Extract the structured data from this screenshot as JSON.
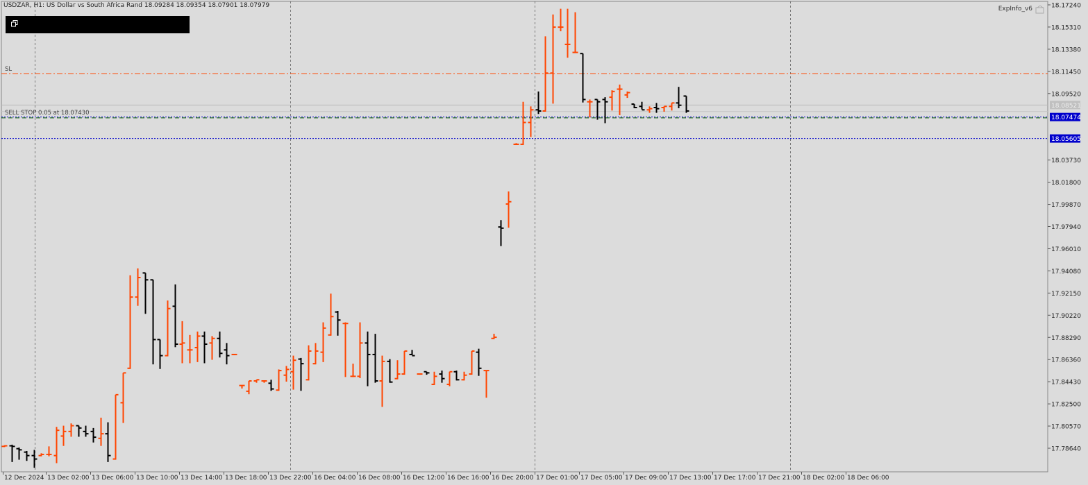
{
  "header": {
    "symbol_line": "USDZAR, H1:  US Dollar vs South Africa Rand  18.09284 18.09354 18.07901 18.07979",
    "indicator_name": "ExpInfo_v6"
  },
  "lines": {
    "sl": {
      "label": "SL",
      "price": 18.1125,
      "color": "#ff4500"
    },
    "sell_stop": {
      "label": "SELL STOP 0.05 at 18.07430",
      "price": 18.0743
    },
    "bid": {
      "price": 18.07474,
      "price_label": "18.07474",
      "color": "#0000cc"
    },
    "ask_gray": {
      "price": 18.0852,
      "price_label": "18.08521"
    },
    "second_blue": {
      "price": 18.05605,
      "price_label": "18.05605",
      "color": "#0000cc"
    }
  },
  "colors": {
    "bull": "#ff4500",
    "bear": "#000000",
    "background": "#dcdcdc",
    "grid": "#808080"
  },
  "chart_data": {
    "type": "ohlc",
    "symbol": "USDZAR",
    "timeframe": "H1",
    "ylim": [
      17.77,
      18.175
    ],
    "y_ticks": [
      "18.17240",
      "18.15310",
      "18.13380",
      "18.11450",
      "18.09520",
      "18.07474",
      "18.05605",
      "18.03730",
      "18.01800",
      "17.99870",
      "17.97940",
      "17.96010",
      "17.94080",
      "17.92150",
      "17.90220",
      "17.88290",
      "17.86360",
      "17.84430",
      "17.82500",
      "17.80570",
      "17.78640"
    ],
    "x_ticks": [
      "12 Dec 2024",
      "13 Dec 02:00",
      "13 Dec 06:00",
      "13 Dec 10:00",
      "13 Dec 14:00",
      "13 Dec 18:00",
      "13 Dec 22:00",
      "16 Dec 04:00",
      "16 Dec 08:00",
      "16 Dec 12:00",
      "16 Dec 16:00",
      "16 Dec 20:00",
      "17 Dec 01:00",
      "17 Dec 05:00",
      "17 Dec 09:00",
      "17 Dec 13:00",
      "17 Dec 17:00",
      "17 Dec 21:00",
      "18 Dec 02:00",
      "18 Dec 06:00"
    ],
    "bars": [
      {
        "o": 17.788,
        "h": 17.789,
        "l": 17.788,
        "c": 17.7885
      },
      {
        "o": 17.7885,
        "h": 17.7895,
        "l": 17.775,
        "c": 17.788
      },
      {
        "o": 17.786,
        "h": 17.787,
        "l": 17.777,
        "c": 17.785
      },
      {
        "o": 17.783,
        "h": 17.784,
        "l": 17.776,
        "c": 17.78
      },
      {
        "o": 17.78,
        "h": 17.785,
        "l": 17.77,
        "c": 17.777
      },
      {
        "o": 17.78,
        "h": 17.782,
        "l": 17.78,
        "c": 17.781
      },
      {
        "o": 17.781,
        "h": 17.788,
        "l": 17.78,
        "c": 17.781
      },
      {
        "o": 17.78,
        "h": 17.805,
        "l": 17.774,
        "c": 17.802
      },
      {
        "o": 17.797,
        "h": 17.806,
        "l": 17.789,
        "c": 17.801
      },
      {
        "o": 17.801,
        "h": 17.808,
        "l": 17.797,
        "c": 17.806
      },
      {
        "o": 17.806,
        "h": 17.806,
        "l": 17.797,
        "c": 17.804
      },
      {
        "o": 17.801,
        "h": 17.806,
        "l": 17.797,
        "c": 17.799
      },
      {
        "o": 17.801,
        "h": 17.804,
        "l": 17.792,
        "c": 17.796
      },
      {
        "o": 17.795,
        "h": 17.813,
        "l": 17.789,
        "c": 17.799
      },
      {
        "o": 17.799,
        "h": 17.809,
        "l": 17.775,
        "c": 17.78
      },
      {
        "o": 17.777,
        "h": 17.833,
        "l": 17.777,
        "c": 17.833
      },
      {
        "o": 17.826,
        "h": 17.852,
        "l": 17.809,
        "c": 17.852
      },
      {
        "o": 17.856,
        "h": 17.937,
        "l": 17.856,
        "c": 17.918
      },
      {
        "o": 17.918,
        "h": 17.943,
        "l": 17.911,
        "c": 17.935
      },
      {
        "o": 17.939,
        "h": 17.939,
        "l": 17.904,
        "c": 17.933
      },
      {
        "o": 17.933,
        "h": 17.933,
        "l": 17.86,
        "c": 17.881
      },
      {
        "o": 17.881,
        "h": 17.881,
        "l": 17.856,
        "c": 17.867
      },
      {
        "o": 17.867,
        "h": 17.915,
        "l": 17.867,
        "c": 17.908
      },
      {
        "o": 17.91,
        "h": 17.929,
        "l": 17.875,
        "c": 17.877
      },
      {
        "o": 17.877,
        "h": 17.897,
        "l": 17.861,
        "c": 17.878
      },
      {
        "o": 17.872,
        "h": 17.885,
        "l": 17.861,
        "c": 17.872
      },
      {
        "o": 17.874,
        "h": 17.888,
        "l": 17.862,
        "c": 17.884
      },
      {
        "o": 17.884,
        "h": 17.888,
        "l": 17.861,
        "c": 17.877
      },
      {
        "o": 17.878,
        "h": 17.884,
        "l": 17.864,
        "c": 17.882
      },
      {
        "o": 17.882,
        "h": 17.888,
        "l": 17.866,
        "c": 17.869
      },
      {
        "o": 17.872,
        "h": 17.878,
        "l": 17.86,
        "c": 17.867
      },
      {
        "o": 17.868,
        "h": 17.868,
        "l": 17.868,
        "c": 17.868
      },
      {
        "o": 17.841,
        "h": 17.841,
        "l": 17.839,
        "c": 17.841
      },
      {
        "o": 17.836,
        "h": 17.845,
        "l": 17.834,
        "c": 17.845
      },
      {
        "o": 17.845,
        "h": 17.846,
        "l": 17.844,
        "c": 17.846
      },
      {
        "o": 17.845,
        "h": 17.845,
        "l": 17.844,
        "c": 17.845
      },
      {
        "o": 17.843,
        "h": 17.846,
        "l": 17.837,
        "c": 17.838
      },
      {
        "o": 17.837,
        "h": 17.855,
        "l": 17.837,
        "c": 17.854
      },
      {
        "o": 17.85,
        "h": 17.858,
        "l": 17.845,
        "c": 17.855
      },
      {
        "o": 17.853,
        "h": 17.867,
        "l": 17.838,
        "c": 17.863
      },
      {
        "o": 17.864,
        "h": 17.865,
        "l": 17.837,
        "c": 17.86
      },
      {
        "o": 17.846,
        "h": 17.876,
        "l": 17.846,
        "c": 17.871
      },
      {
        "o": 17.86,
        "h": 17.878,
        "l": 17.86,
        "c": 17.871
      },
      {
        "o": 17.87,
        "h": 17.896,
        "l": 17.862,
        "c": 17.891
      },
      {
        "o": 17.885,
        "h": 17.921,
        "l": 17.885,
        "c": 17.901
      },
      {
        "o": 17.905,
        "h": 17.906,
        "l": 17.885,
        "c": 17.898
      },
      {
        "o": 17.895,
        "h": 17.896,
        "l": 17.849,
        "c": 17.895
      },
      {
        "o": 17.849,
        "h": 17.86,
        "l": 17.849,
        "c": 17.849
      },
      {
        "o": 17.849,
        "h": 17.896,
        "l": 17.848,
        "c": 17.878
      },
      {
        "o": 17.878,
        "h": 17.888,
        "l": 17.841,
        "c": 17.868
      },
      {
        "o": 17.868,
        "h": 17.886,
        "l": 17.844,
        "c": 17.845
      },
      {
        "o": 17.845,
        "h": 17.867,
        "l": 17.823,
        "c": 17.862
      },
      {
        "o": 17.862,
        "h": 17.864,
        "l": 17.844,
        "c": 17.844
      },
      {
        "o": 17.847,
        "h": 17.863,
        "l": 17.847,
        "c": 17.851
      },
      {
        "o": 17.851,
        "h": 17.871,
        "l": 17.851,
        "c": 17.871
      },
      {
        "o": 17.868,
        "h": 17.872,
        "l": 17.868,
        "c": 17.867
      },
      {
        "o": 17.851,
        "h": 17.851,
        "l": 17.851,
        "c": 17.851
      },
      {
        "o": 17.853,
        "h": 17.853,
        "l": 17.851,
        "c": 17.852
      },
      {
        "o": 17.842,
        "h": 17.853,
        "l": 17.842,
        "c": 17.849
      },
      {
        "o": 17.851,
        "h": 17.854,
        "l": 17.844,
        "c": 17.847
      },
      {
        "o": 17.842,
        "h": 17.853,
        "l": 17.841,
        "c": 17.853
      },
      {
        "o": 17.853,
        "h": 17.854,
        "l": 17.846,
        "c": 17.846
      },
      {
        "o": 17.846,
        "h": 17.853,
        "l": 17.846,
        "c": 17.85
      },
      {
        "o": 17.851,
        "h": 17.871,
        "l": 17.851,
        "c": 17.871
      },
      {
        "o": 17.87,
        "h": 17.873,
        "l": 17.85,
        "c": 17.856
      },
      {
        "o": 17.854,
        "h": 17.854,
        "l": 17.831,
        "c": 17.854
      },
      {
        "o": 17.882,
        "h": 17.886,
        "l": 17.882,
        "c": 17.883
      },
      {
        "o": 17.979,
        "h": 17.985,
        "l": 17.963,
        "c": 17.978
      },
      {
        "o": 17.999,
        "h": 18.01,
        "l": 17.979,
        "c": 18.001
      },
      {
        "o": 18.051,
        "h": 18.052,
        "l": 18.051,
        "c": 18.051
      },
      {
        "o": 18.051,
        "h": 18.088,
        "l": 18.051,
        "c": 18.07
      },
      {
        "o": 18.07,
        "h": 18.084,
        "l": 18.058,
        "c": 18.081
      },
      {
        "o": 18.081,
        "h": 18.097,
        "l": 18.078,
        "c": 18.08
      },
      {
        "o": 18.08,
        "h": 18.145,
        "l": 18.08,
        "c": 18.113
      },
      {
        "o": 18.113,
        "h": 18.164,
        "l": 18.087,
        "c": 18.153
      },
      {
        "o": 18.153,
        "h": 18.169,
        "l": 18.15,
        "c": 18.153
      },
      {
        "o": 18.138,
        "h": 18.169,
        "l": 18.127,
        "c": 18.138
      },
      {
        "o": 18.131,
        "h": 18.166,
        "l": 18.131,
        "c": 18.131
      },
      {
        "o": 18.13,
        "h": 18.13,
        "l": 18.088,
        "c": 18.09
      },
      {
        "o": 18.088,
        "h": 18.09,
        "l": 18.075,
        "c": 18.088
      },
      {
        "o": 18.09,
        "h": 18.09,
        "l": 18.073,
        "c": 18.088
      },
      {
        "o": 18.09,
        "h": 18.092,
        "l": 18.07,
        "c": 18.088
      },
      {
        "o": 18.092,
        "h": 18.098,
        "l": 18.081,
        "c": 18.097
      },
      {
        "o": 18.099,
        "h": 18.103,
        "l": 18.077,
        "c": 18.099
      },
      {
        "o": 18.094,
        "h": 18.097,
        "l": 18.092,
        "c": 18.096
      },
      {
        "o": 18.086,
        "h": 18.086,
        "l": 18.083,
        "c": 18.083
      },
      {
        "o": 18.084,
        "h": 18.088,
        "l": 18.082,
        "c": 18.081
      },
      {
        "o": 18.081,
        "h": 18.084,
        "l": 18.079,
        "c": 18.082
      },
      {
        "o": 18.083,
        "h": 18.087,
        "l": 18.079,
        "c": 18.082
      },
      {
        "o": 18.083,
        "h": 18.084,
        "l": 18.08,
        "c": 18.084
      },
      {
        "o": 18.084,
        "h": 18.087,
        "l": 18.081,
        "c": 18.087
      },
      {
        "o": 18.087,
        "h": 18.101,
        "l": 18.083,
        "c": 18.085
      },
      {
        "o": 18.093,
        "h": 18.093,
        "l": 18.079,
        "c": 18.08
      }
    ]
  }
}
